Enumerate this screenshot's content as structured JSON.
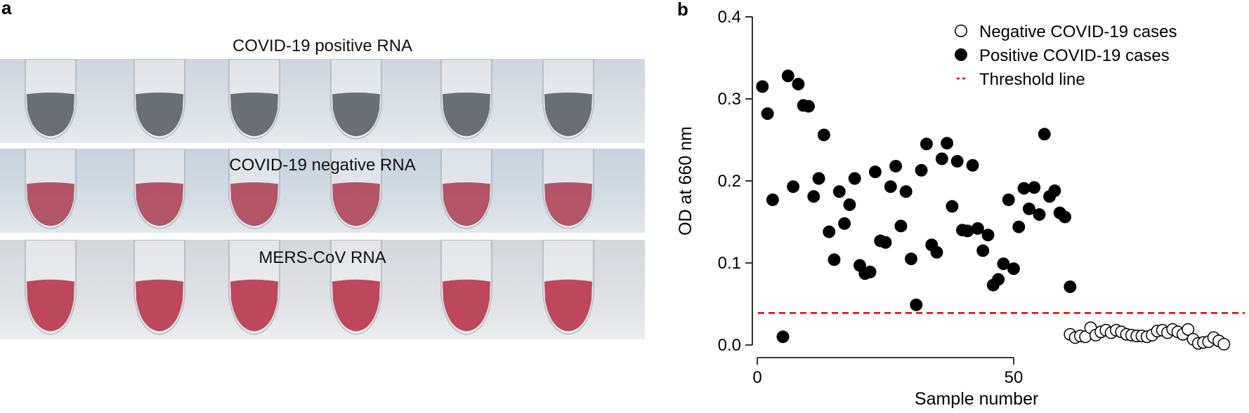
{
  "panel_a": {
    "letter": "a",
    "strips": [
      {
        "title": "COVID-19 positive RNA",
        "liquid_color": "#5f6468",
        "tubes": 6
      },
      {
        "title": "COVID-19 negative RNA",
        "liquid_color": "#b0485c",
        "tubes": 6
      },
      {
        "title": "MERS-CoV RNA",
        "liquid_color": "#b8394f",
        "tubes": 6
      }
    ]
  },
  "panel_b": {
    "letter": "b"
  },
  "chart_data": {
    "type": "scatter",
    "xlabel": "Sample number",
    "ylabel": "OD at 660 nm",
    "xlim": [
      -2,
      91
    ],
    "ylim": [
      0,
      0.4
    ],
    "x_ticks": [
      0,
      50
    ],
    "y_ticks": [
      "0.0",
      "0.1",
      "0.2",
      "0.3",
      "0.4"
    ],
    "legend_position": "top-right",
    "threshold": {
      "name": "Threshold line",
      "y": 0.039,
      "color": "#e00000"
    },
    "series": [
      {
        "name": "Negative COVID-19 cases",
        "marker": "open-circle",
        "points": [
          [
            61,
            0.013
          ],
          [
            62,
            0.009
          ],
          [
            63,
            0.011
          ],
          [
            64,
            0.01
          ],
          [
            65,
            0.021
          ],
          [
            66,
            0.012
          ],
          [
            67,
            0.016
          ],
          [
            68,
            0.018
          ],
          [
            69,
            0.015
          ],
          [
            70,
            0.018
          ],
          [
            71,
            0.016
          ],
          [
            72,
            0.013
          ],
          [
            73,
            0.012
          ],
          [
            74,
            0.011
          ],
          [
            75,
            0.011
          ],
          [
            76,
            0.01
          ],
          [
            77,
            0.012
          ],
          [
            78,
            0.017
          ],
          [
            79,
            0.018
          ],
          [
            80,
            0.015
          ],
          [
            81,
            0.019
          ],
          [
            82,
            0.016
          ],
          [
            83,
            0.013
          ],
          [
            84,
            0.019
          ],
          [
            85,
            0.007
          ],
          [
            86,
            0.002
          ],
          [
            87,
            0.003
          ],
          [
            88,
            0.004
          ],
          [
            89,
            0.009
          ],
          [
            90,
            0.005
          ],
          [
            91,
            0.001
          ]
        ]
      },
      {
        "name": "Positive COVID-19 cases",
        "marker": "filled-circle",
        "points": [
          [
            1,
            0.315
          ],
          [
            2,
            0.282
          ],
          [
            3,
            0.177
          ],
          [
            5,
            0.01
          ],
          [
            6,
            0.328
          ],
          [
            7,
            0.193
          ],
          [
            8,
            0.318
          ],
          [
            9,
            0.292
          ],
          [
            10,
            0.291
          ],
          [
            11,
            0.181
          ],
          [
            12,
            0.203
          ],
          [
            13,
            0.256
          ],
          [
            14,
            0.138
          ],
          [
            15,
            0.104
          ],
          [
            16,
            0.187
          ],
          [
            17,
            0.148
          ],
          [
            18,
            0.171
          ],
          [
            19,
            0.203
          ],
          [
            20,
            0.097
          ],
          [
            21,
            0.087
          ],
          [
            22,
            0.089
          ],
          [
            23,
            0.211
          ],
          [
            24,
            0.127
          ],
          [
            25,
            0.125
          ],
          [
            26,
            0.193
          ],
          [
            27,
            0.218
          ],
          [
            28,
            0.145
          ],
          [
            29,
            0.187
          ],
          [
            30,
            0.105
          ],
          [
            31,
            0.049
          ],
          [
            32,
            0.213
          ],
          [
            33,
            0.245
          ],
          [
            34,
            0.122
          ],
          [
            35,
            0.113
          ],
          [
            36,
            0.227
          ],
          [
            37,
            0.246
          ],
          [
            38,
            0.169
          ],
          [
            39,
            0.224
          ],
          [
            40,
            0.14
          ],
          [
            41,
            0.139
          ],
          [
            42,
            0.219
          ],
          [
            43,
            0.142
          ],
          [
            44,
            0.115
          ],
          [
            45,
            0.134
          ],
          [
            46,
            0.073
          ],
          [
            47,
            0.08
          ],
          [
            48,
            0.099
          ],
          [
            49,
            0.177
          ],
          [
            50,
            0.093
          ],
          [
            51,
            0.144
          ],
          [
            52,
            0.191
          ],
          [
            53,
            0.166
          ],
          [
            54,
            0.192
          ],
          [
            55,
            0.159
          ],
          [
            56,
            0.257
          ],
          [
            57,
            0.181
          ],
          [
            58,
            0.188
          ],
          [
            59,
            0.161
          ],
          [
            60,
            0.156
          ],
          [
            61,
            0.071
          ]
        ]
      }
    ]
  }
}
